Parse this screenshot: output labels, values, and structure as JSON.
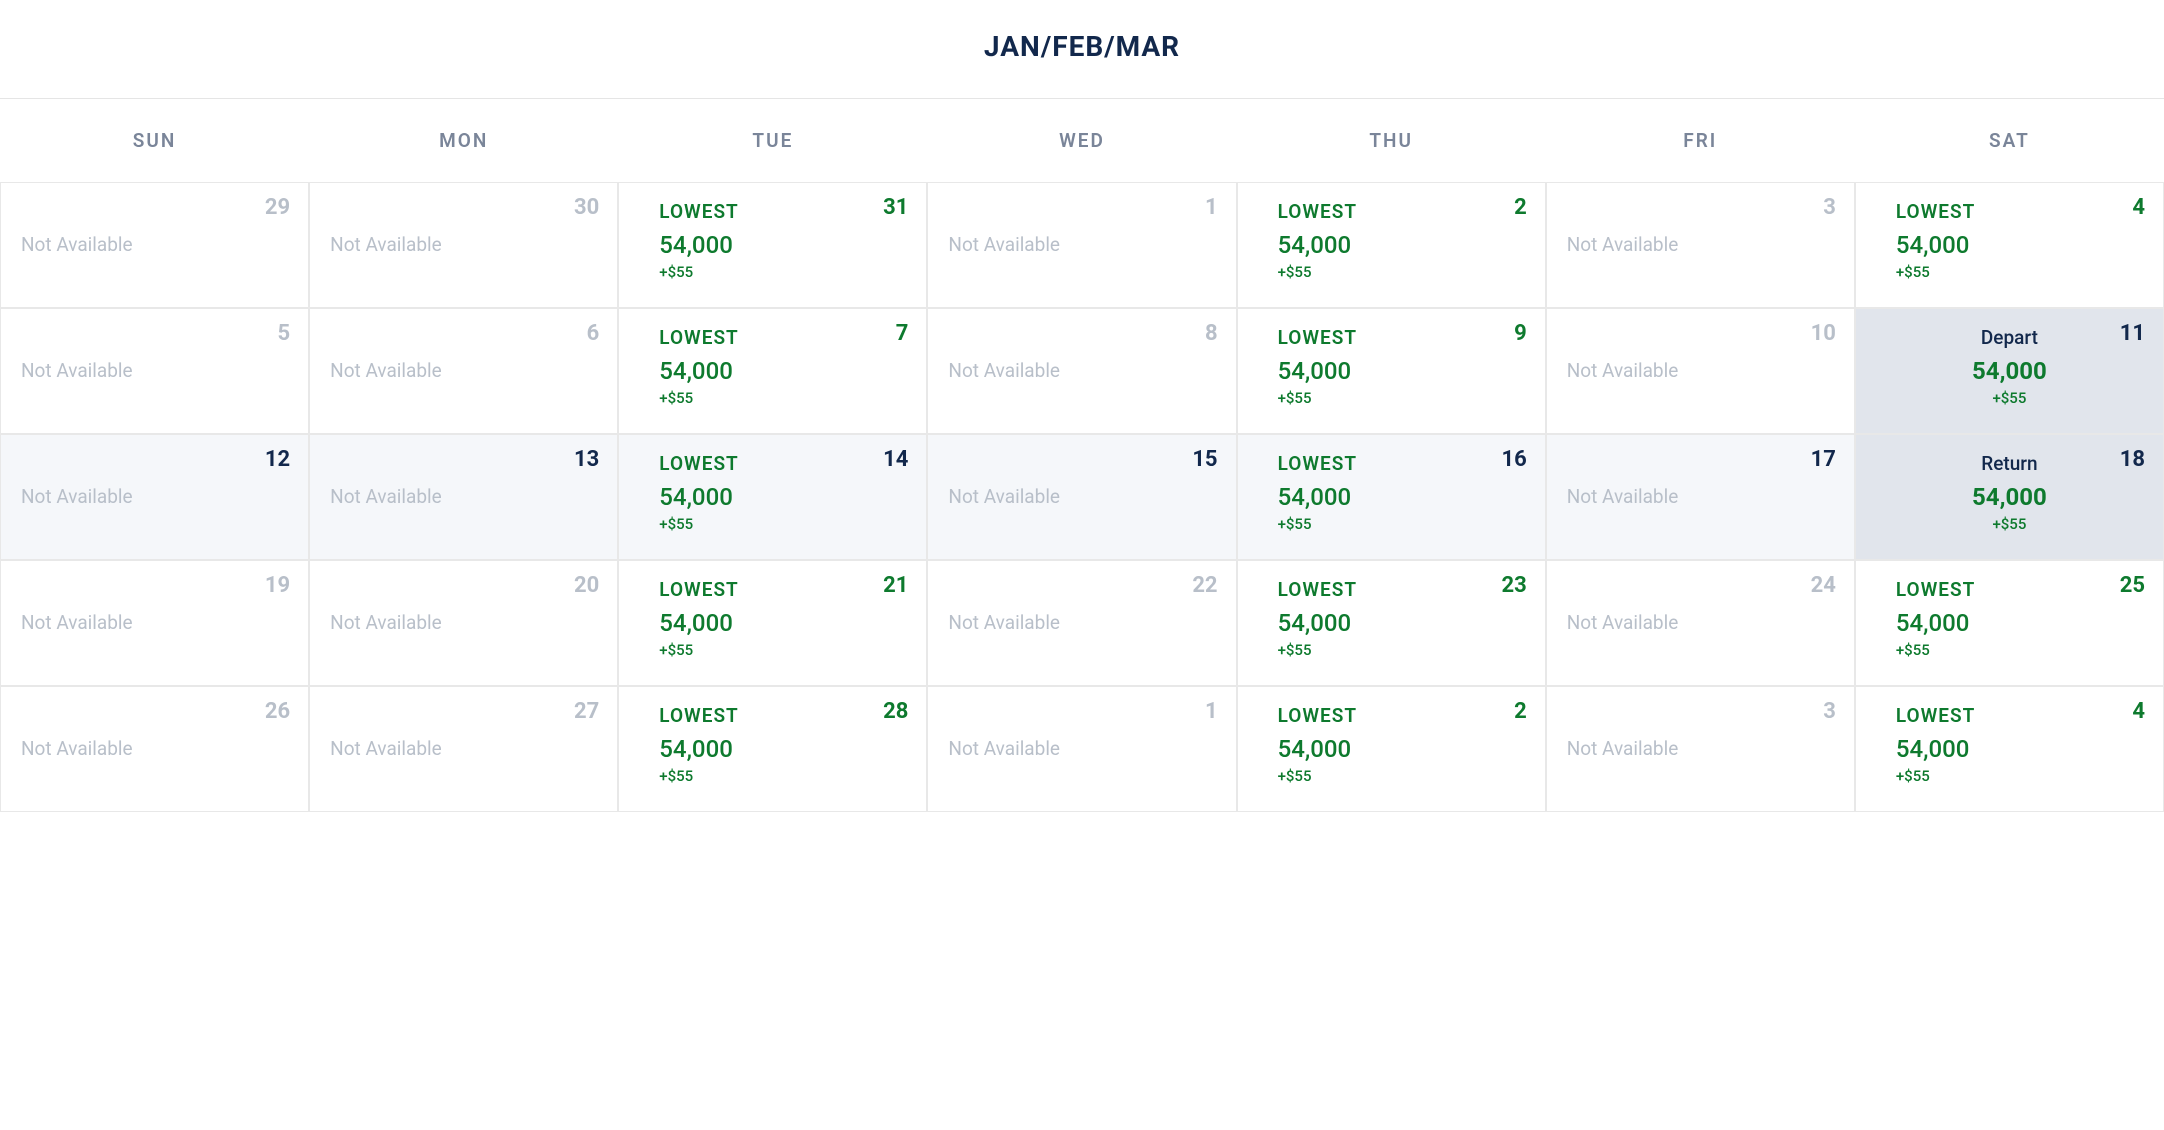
{
  "calendar": {
    "title": "JAN/FEB/MAR",
    "day_headers": [
      "SUN",
      "MON",
      "TUE",
      "WED",
      "THU",
      "FRI",
      "SAT"
    ],
    "not_available_text": "Not Available",
    "lowest_label": "LOWEST",
    "depart_label": "Depart",
    "return_label": "Return",
    "points_value": "54,000",
    "fee_value": "+$55",
    "colors": {
      "title": "#12284c",
      "header_text": "#7a8599",
      "muted_text": "#b8bfc9",
      "available_green": "#0e7a2e",
      "current_month_navy": "#12284c",
      "row_highlight_bg": "#f5f7fa",
      "selected_bg": "#e1e5ec",
      "border": "#e8e8e8"
    },
    "weeks": [
      [
        {
          "day": "29",
          "status": "not_available",
          "day_style": "muted"
        },
        {
          "day": "30",
          "status": "not_available",
          "day_style": "muted"
        },
        {
          "day": "31",
          "status": "lowest",
          "day_style": "available"
        },
        {
          "day": "1",
          "status": "not_available",
          "day_style": "muted"
        },
        {
          "day": "2",
          "status": "lowest",
          "day_style": "available"
        },
        {
          "day": "3",
          "status": "not_available",
          "day_style": "muted"
        },
        {
          "day": "4",
          "status": "lowest",
          "day_style": "available"
        }
      ],
      [
        {
          "day": "5",
          "status": "not_available",
          "day_style": "muted"
        },
        {
          "day": "6",
          "status": "not_available",
          "day_style": "muted"
        },
        {
          "day": "7",
          "status": "lowest",
          "day_style": "available"
        },
        {
          "day": "8",
          "status": "not_available",
          "day_style": "muted"
        },
        {
          "day": "9",
          "status": "lowest",
          "day_style": "available"
        },
        {
          "day": "10",
          "status": "not_available",
          "day_style": "muted"
        },
        {
          "day": "11",
          "status": "depart",
          "day_style": "current-month",
          "selected": true
        }
      ],
      [
        {
          "day": "12",
          "status": "not_available",
          "day_style": "current-month",
          "row_highlight": true
        },
        {
          "day": "13",
          "status": "not_available",
          "day_style": "current-month",
          "row_highlight": true
        },
        {
          "day": "14",
          "status": "lowest",
          "day_style": "current-month",
          "row_highlight": true
        },
        {
          "day": "15",
          "status": "not_available",
          "day_style": "current-month",
          "row_highlight": true
        },
        {
          "day": "16",
          "status": "lowest",
          "day_style": "current-month",
          "row_highlight": true
        },
        {
          "day": "17",
          "status": "not_available",
          "day_style": "current-month",
          "row_highlight": true
        },
        {
          "day": "18",
          "status": "return",
          "day_style": "current-month",
          "selected": true
        }
      ],
      [
        {
          "day": "19",
          "status": "not_available",
          "day_style": "muted"
        },
        {
          "day": "20",
          "status": "not_available",
          "day_style": "muted"
        },
        {
          "day": "21",
          "status": "lowest",
          "day_style": "available"
        },
        {
          "day": "22",
          "status": "not_available",
          "day_style": "muted"
        },
        {
          "day": "23",
          "status": "lowest",
          "day_style": "available"
        },
        {
          "day": "24",
          "status": "not_available",
          "day_style": "muted"
        },
        {
          "day": "25",
          "status": "lowest",
          "day_style": "available"
        }
      ],
      [
        {
          "day": "26",
          "status": "not_available",
          "day_style": "muted"
        },
        {
          "day": "27",
          "status": "not_available",
          "day_style": "muted"
        },
        {
          "day": "28",
          "status": "lowest",
          "day_style": "available"
        },
        {
          "day": "1",
          "status": "not_available",
          "day_style": "muted"
        },
        {
          "day": "2",
          "status": "lowest",
          "day_style": "available"
        },
        {
          "day": "3",
          "status": "not_available",
          "day_style": "muted"
        },
        {
          "day": "4",
          "status": "lowest",
          "day_style": "available"
        }
      ]
    ]
  }
}
